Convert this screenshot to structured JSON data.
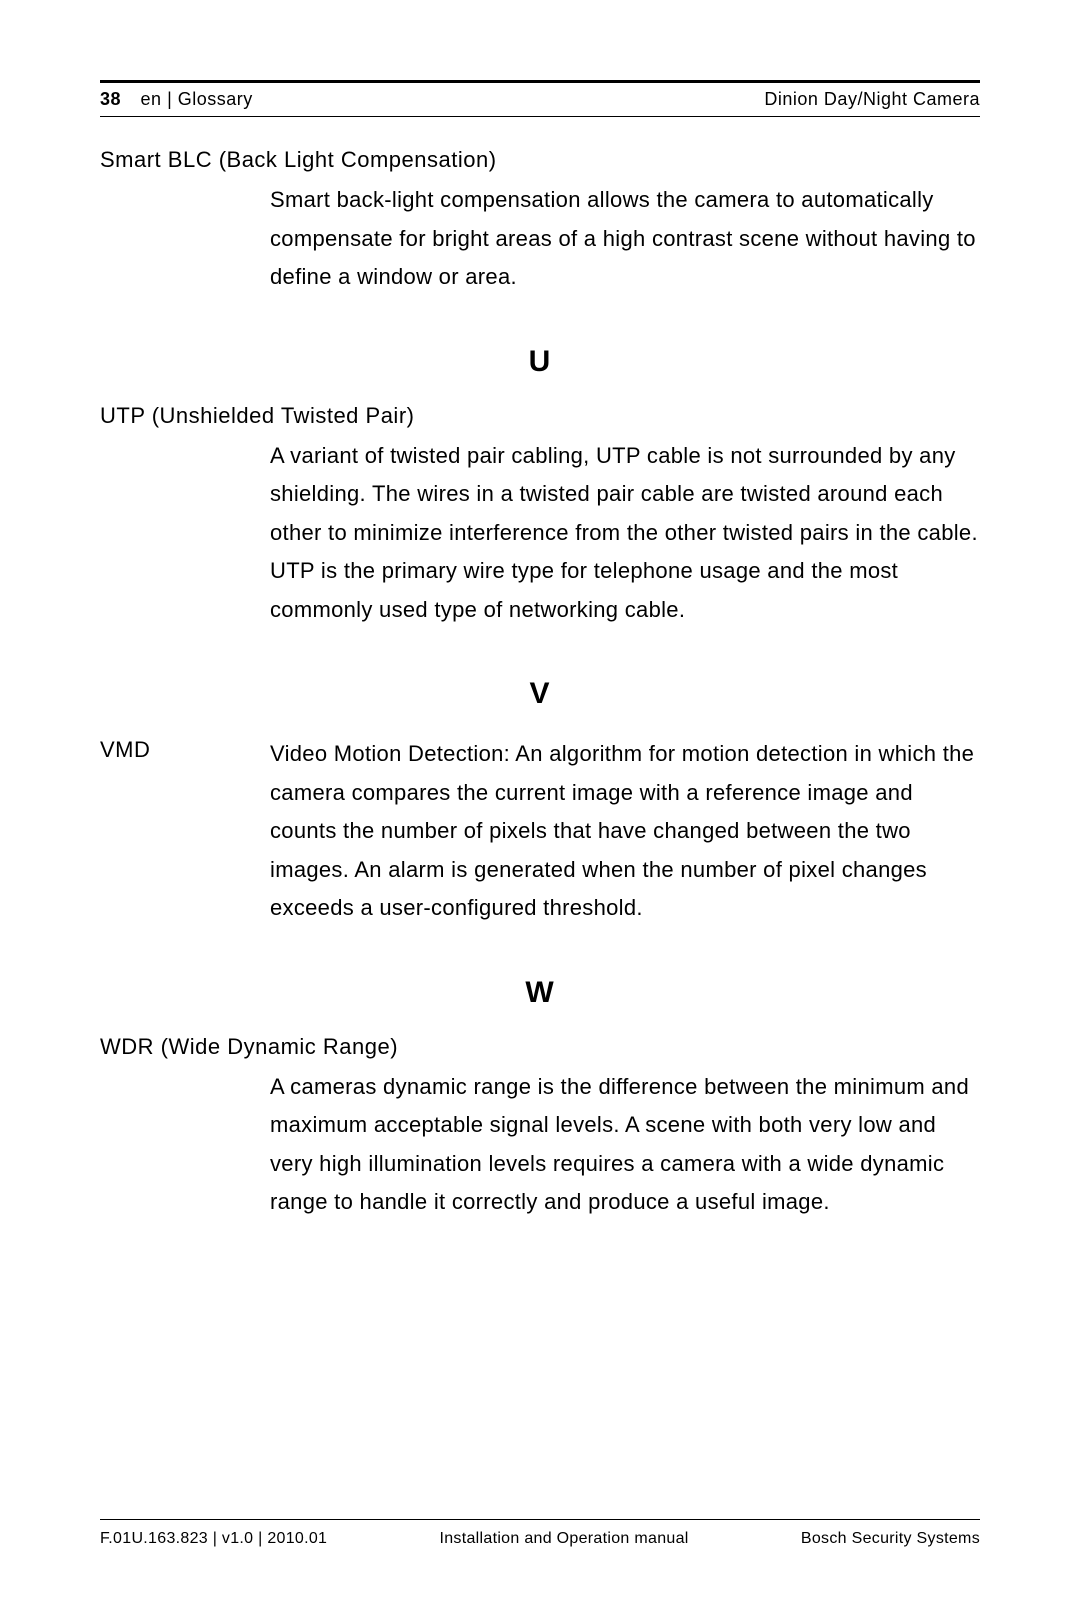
{
  "header": {
    "page_number": "38",
    "lang_section": "en | Glossary",
    "product": "Dinion Day/Night Camera"
  },
  "entries": [
    {
      "term": "Smart BLC (Back Light Compensation)",
      "inline": false,
      "definition": "Smart back-light compensation allows the camera to automatically compensate for bright areas of a high contrast scene without having to define a window or area."
    }
  ],
  "sections": [
    {
      "letter": "U",
      "entries": [
        {
          "term": "UTP (Unshielded Twisted Pair)",
          "inline": false,
          "definition": "A variant of twisted pair cabling, UTP cable is not surrounded by any shielding. The wires in a twisted pair cable are twisted around each other to minimize interference from the other twisted pairs in the cable. UTP is the primary wire type for telephone usage and the most commonly used type of networking cable."
        }
      ]
    },
    {
      "letter": "V",
      "entries": [
        {
          "term": "VMD",
          "inline": true,
          "definition": "Video Motion Detection: An algorithm for motion detection in which the camera compares the current image with a reference image and counts the number of pixels that have changed between the two images. An alarm is generated when the number of pixel changes exceeds a user-configured threshold."
        }
      ]
    },
    {
      "letter": "W",
      "entries": [
        {
          "term": "WDR (Wide Dynamic Range)",
          "inline": false,
          "definition": "A cameras dynamic range is the difference between the minimum and maximum acceptable signal levels. A scene with both very low and very high illumination levels requires a camera with a wide dynamic range to handle it correctly and produce a useful image."
        }
      ]
    }
  ],
  "footer": {
    "left": "F.01U.163.823 | v1.0 | 2010.01",
    "center": "Installation and Operation manual",
    "right": "Bosch Security Systems"
  }
}
